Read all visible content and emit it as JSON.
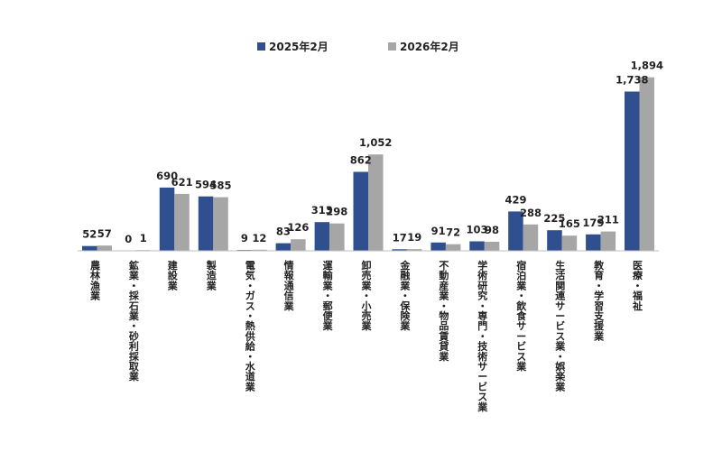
{
  "chart_data": {
    "type": "bar",
    "title": "",
    "xlabel": "",
    "ylabel": "",
    "ylim": [
      0,
      1950
    ],
    "grid": false,
    "legend_position": "top-center",
    "categories": [
      "農林漁業",
      "鉱業・採石業・砂利採取業",
      "建設業",
      "製造業",
      "電気・ガス・熱供給・水道業",
      "情報通信業",
      "運輸業・郵便業",
      "卸売業・小売業",
      "金融業・保険業",
      "不動産業・物品賃貸業",
      "学術研究・専門・技術サービス業",
      "宿泊業・飲食サービス業",
      "生活関連サービス業・娯楽業",
      "教育・学習支援業",
      "医療・福祉"
    ],
    "series": [
      {
        "name": "2025年2月",
        "color": "#2f4f8f",
        "values": [
          52,
          0,
          690,
          594,
          9,
          83,
          313,
          862,
          17,
          91,
          103,
          429,
          225,
          179,
          1738
        ],
        "labels": [
          "52",
          "0",
          "690",
          "594",
          "9",
          "83",
          "313",
          "862",
          "17",
          "91",
          "103",
          "429",
          "225",
          "179",
          "1,738"
        ]
      },
      {
        "name": "2026年2月",
        "color": "#a6a6a6",
        "values": [
          57,
          1,
          621,
          585,
          12,
          126,
          298,
          1052,
          19,
          72,
          98,
          288,
          165,
          211,
          1894
        ],
        "labels": [
          "57",
          "1",
          "621",
          "585",
          "12",
          "126",
          "298",
          "1,052",
          "19",
          "72",
          "98",
          "288",
          "165",
          "211",
          "1,894"
        ]
      }
    ]
  }
}
